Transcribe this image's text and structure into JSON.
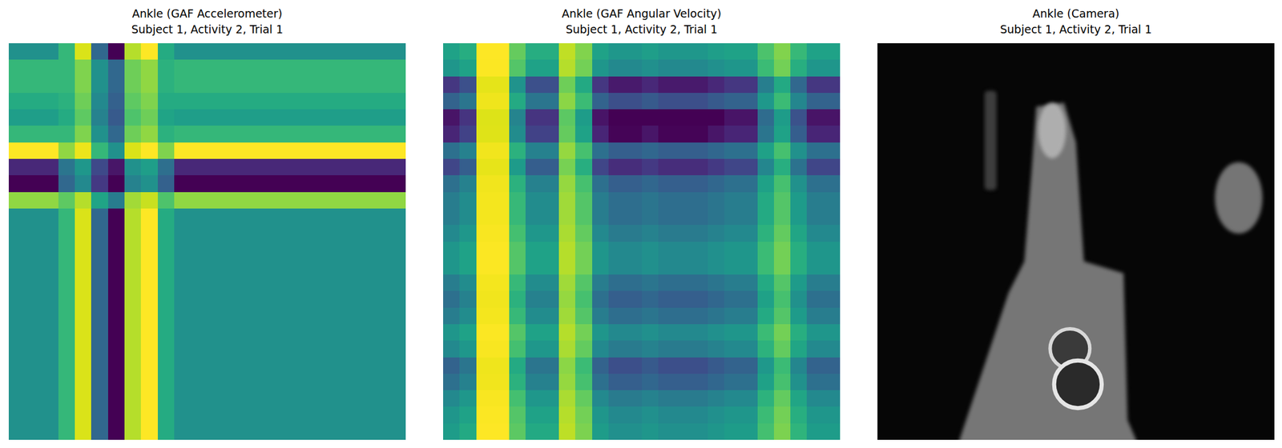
{
  "chart_data": [
    {
      "type": "heatmap",
      "title": [
        "Ankle (GAF Accelerometer)",
        "Subject 1, Activity 2, Trial 1"
      ],
      "tick_labels": false,
      "z": [
        [
          0,
          0,
          0,
          0.3,
          0.8,
          -0.3,
          -0.9,
          0.7,
          0.9,
          0.2,
          0,
          0,
          0,
          0,
          0,
          0,
          0,
          0,
          0,
          0,
          0,
          0,
          0,
          0
        ],
        [
          0.3,
          0.3,
          0.3,
          0.3,
          0.55,
          0,
          -0.3,
          0.5,
          0.6,
          0.25,
          0.3,
          0.3,
          0.3,
          0.3,
          0.3,
          0.3,
          0.3,
          0.3,
          0.3,
          0.3,
          0.3,
          0.3,
          0.3,
          0.3
        ],
        [
          0.3,
          0.3,
          0.3,
          0.3,
          0.55,
          0,
          -0.3,
          0.5,
          0.6,
          0.25,
          0.3,
          0.3,
          0.3,
          0.3,
          0.3,
          0.3,
          0.3,
          0.3,
          0.3,
          0.3,
          0.3,
          0.3,
          0.3,
          0.3
        ],
        [
          0.2,
          0.2,
          0.2,
          0.25,
          0.5,
          -0.05,
          -0.35,
          0.45,
          0.55,
          0.2,
          0.2,
          0.2,
          0.2,
          0.2,
          0.2,
          0.2,
          0.2,
          0.2,
          0.2,
          0.2,
          0.2,
          0.2,
          0.2,
          0.2
        ],
        [
          0.1,
          0.1,
          0.1,
          0.2,
          0.45,
          -0.1,
          -0.4,
          0.4,
          0.5,
          0.15,
          0.1,
          0.1,
          0.1,
          0.1,
          0.1,
          0.1,
          0.1,
          0.1,
          0.1,
          0.1,
          0.1,
          0.1,
          0.1,
          0.1
        ],
        [
          0.3,
          0.3,
          0.3,
          0.3,
          0.55,
          0,
          -0.3,
          0.5,
          0.6,
          0.25,
          0.3,
          0.3,
          0.3,
          0.3,
          0.3,
          0.3,
          0.3,
          0.3,
          0.3,
          0.3,
          0.3,
          0.3,
          0.3,
          0.3
        ],
        [
          0.9,
          0.9,
          0.9,
          0.6,
          0.85,
          0.3,
          0,
          0.8,
          0.9,
          0.55,
          0.9,
          0.9,
          0.9,
          0.9,
          0.9,
          0.9,
          0.9,
          0.9,
          0.9,
          0.9,
          0.9,
          0.9,
          0.9,
          0.9
        ],
        [
          -0.7,
          -0.7,
          -0.7,
          -0.2,
          0.05,
          -0.5,
          -0.8,
          0,
          0.1,
          -0.25,
          -0.7,
          -0.7,
          -0.7,
          -0.7,
          -0.7,
          -0.7,
          -0.7,
          -0.7,
          -0.7,
          -0.7,
          -0.7,
          -0.7,
          -0.7,
          -0.7
        ],
        [
          -0.9,
          -0.9,
          -0.9,
          -0.3,
          -0.05,
          -0.6,
          -0.9,
          -0.1,
          0,
          -0.35,
          -0.9,
          -0.9,
          -0.9,
          -0.9,
          -0.9,
          -0.9,
          -0.9,
          -0.9,
          -0.9,
          -0.9,
          -0.9,
          -0.9,
          -0.9,
          -0.9
        ],
        [
          0.6,
          0.6,
          0.6,
          0.45,
          0.7,
          0.15,
          -0.15,
          0.65,
          0.75,
          0.4,
          0.6,
          0.6,
          0.6,
          0.6,
          0.6,
          0.6,
          0.6,
          0.6,
          0.6,
          0.6,
          0.6,
          0.6,
          0.6,
          0.6
        ],
        [
          0,
          0,
          0,
          0.3,
          0.8,
          -0.3,
          -0.9,
          0.7,
          0.9,
          0.2,
          0,
          0,
          0,
          0,
          0,
          0,
          0,
          0,
          0,
          0,
          0,
          0,
          0,
          0
        ],
        [
          0,
          0,
          0,
          0.3,
          0.8,
          -0.3,
          -0.9,
          0.7,
          0.9,
          0.2,
          0,
          0,
          0,
          0,
          0,
          0,
          0,
          0,
          0,
          0,
          0,
          0,
          0,
          0
        ],
        [
          0,
          0,
          0,
          0.3,
          0.8,
          -0.3,
          -0.9,
          0.7,
          0.9,
          0.2,
          0,
          0,
          0,
          0,
          0,
          0,
          0,
          0,
          0,
          0,
          0,
          0,
          0,
          0
        ],
        [
          0,
          0,
          0,
          0.3,
          0.8,
          -0.3,
          -0.9,
          0.7,
          0.9,
          0.2,
          0,
          0,
          0,
          0,
          0,
          0,
          0,
          0,
          0,
          0,
          0,
          0,
          0,
          0
        ],
        [
          0,
          0,
          0,
          0.3,
          0.8,
          -0.3,
          -0.9,
          0.7,
          0.9,
          0.2,
          0,
          0,
          0,
          0,
          0,
          0,
          0,
          0,
          0,
          0,
          0,
          0,
          0,
          0
        ],
        [
          0,
          0,
          0,
          0.3,
          0.8,
          -0.3,
          -0.9,
          0.7,
          0.9,
          0.2,
          0,
          0,
          0,
          0,
          0,
          0,
          0,
          0,
          0,
          0,
          0,
          0,
          0,
          0
        ],
        [
          0,
          0,
          0,
          0.3,
          0.8,
          -0.3,
          -0.9,
          0.7,
          0.9,
          0.2,
          0,
          0,
          0,
          0,
          0,
          0,
          0,
          0,
          0,
          0,
          0,
          0,
          0,
          0
        ],
        [
          0,
          0,
          0,
          0.3,
          0.8,
          -0.3,
          -0.9,
          0.7,
          0.9,
          0.2,
          0,
          0,
          0,
          0,
          0,
          0,
          0,
          0,
          0,
          0,
          0,
          0,
          0,
          0
        ],
        [
          0,
          0,
          0,
          0.3,
          0.8,
          -0.3,
          -0.9,
          0.7,
          0.9,
          0.2,
          0,
          0,
          0,
          0,
          0,
          0,
          0,
          0,
          0,
          0,
          0,
          0,
          0,
          0
        ],
        [
          0,
          0,
          0,
          0.3,
          0.8,
          -0.3,
          -0.9,
          0.7,
          0.9,
          0.2,
          0,
          0,
          0,
          0,
          0,
          0,
          0,
          0,
          0,
          0,
          0,
          0,
          0,
          0
        ],
        [
          0,
          0,
          0,
          0.3,
          0.8,
          -0.3,
          -0.9,
          0.7,
          0.9,
          0.2,
          0,
          0,
          0,
          0,
          0,
          0,
          0,
          0,
          0,
          0,
          0,
          0,
          0,
          0
        ],
        [
          0,
          0,
          0,
          0.3,
          0.8,
          -0.3,
          -0.9,
          0.7,
          0.9,
          0.2,
          0,
          0,
          0,
          0,
          0,
          0,
          0,
          0,
          0,
          0,
          0,
          0,
          0,
          0
        ],
        [
          0,
          0,
          0,
          0.3,
          0.8,
          -0.3,
          -0.9,
          0.7,
          0.9,
          0.2,
          0,
          0,
          0,
          0,
          0,
          0,
          0,
          0,
          0,
          0,
          0,
          0,
          0,
          0
        ],
        [
          0,
          0,
          0,
          0.3,
          0.8,
          -0.3,
          -0.9,
          0.7,
          0.9,
          0.2,
          0,
          0,
          0,
          0,
          0,
          0,
          0,
          0,
          0,
          0,
          0,
          0,
          0,
          0
        ]
      ]
    },
    {
      "type": "heatmap",
      "title": [
        "Ankle (GAF Angular Velocity)",
        "Subject 1, Activity 2, Trial 1"
      ],
      "tick_labels": false,
      "z": [
        [
          0.1,
          0.19,
          0.91,
          0.91,
          0.46,
          0.19,
          0.19,
          0.73,
          0.55,
          0.1,
          0.01,
          0.01,
          0.06,
          0.01,
          0.01,
          0.01,
          0.06,
          0.1,
          0.1,
          0.37,
          0.55,
          0.28,
          0.1,
          0.1
        ],
        [
          0,
          0.1,
          0.9,
          0.9,
          0.4,
          0.1,
          0.1,
          0.7,
          0.5,
          0,
          -0.1,
          -0.1,
          -0.05,
          -0.1,
          -0.1,
          -0.1,
          -0.05,
          0,
          0,
          0.3,
          0.5,
          0.2,
          0,
          0
        ],
        [
          -0.7,
          -0.53,
          0.83,
          0.83,
          -0.02,
          -0.53,
          -0.53,
          0.49,
          0.15,
          -0.7,
          -0.87,
          -0.87,
          -0.79,
          -0.87,
          -0.87,
          -0.87,
          -0.79,
          -0.7,
          -0.7,
          -0.19,
          0.15,
          -0.36,
          -0.7,
          -0.7
        ],
        [
          -0.4,
          -0.26,
          0.86,
          0.86,
          0.16,
          -0.26,
          -0.26,
          0.58,
          0.3,
          -0.4,
          -0.54,
          -0.54,
          -0.47,
          -0.54,
          -0.54,
          -0.54,
          -0.47,
          -0.4,
          -0.4,
          0.02,
          0.3,
          -0.12,
          -0.4,
          -0.4
        ],
        [
          -0.9,
          -0.71,
          0.81,
          0.81,
          -0.14,
          -0.71,
          -0.71,
          0.43,
          0.05,
          -0.9,
          -1,
          -1,
          -1,
          -1,
          -1,
          -1,
          -1,
          -0.9,
          -0.9,
          -0.33,
          0.05,
          -0.52,
          -0.9,
          -0.9
        ],
        [
          -0.8,
          -0.62,
          0.82,
          0.82,
          -0.08,
          -0.62,
          -0.62,
          0.46,
          0.1,
          -0.8,
          -0.98,
          -0.98,
          -0.89,
          -0.98,
          -0.98,
          -0.98,
          -0.89,
          -0.8,
          -0.8,
          -0.26,
          0.1,
          -0.44,
          -0.8,
          -0.8
        ],
        [
          -0.3,
          -0.17,
          0.87,
          0.87,
          0.22,
          -0.17,
          -0.17,
          0.61,
          0.35,
          -0.3,
          -0.43,
          -0.43,
          -0.37,
          -0.43,
          -0.43,
          -0.43,
          -0.37,
          -0.3,
          -0.3,
          0.09,
          0.35,
          -0.04,
          -0.3,
          -0.3
        ],
        [
          -0.6,
          -0.44,
          0.84,
          0.84,
          0.04,
          -0.44,
          -0.44,
          0.52,
          0.2,
          -0.6,
          -0.76,
          -0.76,
          -0.68,
          -0.76,
          -0.76,
          -0.76,
          -0.68,
          -0.6,
          -0.6,
          -0.12,
          0.2,
          -0.28,
          -0.6,
          -0.6
        ],
        [
          -0.3,
          -0.17,
          0.87,
          0.87,
          0.22,
          -0.17,
          -0.17,
          0.61,
          0.35,
          -0.3,
          -0.43,
          -0.43,
          -0.37,
          -0.43,
          -0.43,
          -0.43,
          -0.37,
          -0.3,
          -0.3,
          0.09,
          0.35,
          -0.04,
          -0.3,
          -0.3
        ],
        [
          -0.2,
          -0.08,
          0.88,
          0.88,
          0.28,
          -0.08,
          -0.08,
          0.64,
          0.4,
          -0.2,
          -0.32,
          -0.32,
          -0.26,
          -0.32,
          -0.32,
          -0.32,
          -0.26,
          -0.2,
          -0.2,
          0.16,
          0.4,
          0.04,
          -0.2,
          -0.2
        ],
        [
          -0.2,
          -0.08,
          0.88,
          0.88,
          0.28,
          -0.08,
          -0.08,
          0.64,
          0.4,
          -0.2,
          -0.32,
          -0.32,
          -0.26,
          -0.32,
          -0.32,
          -0.32,
          -0.26,
          -0.2,
          -0.2,
          0.16,
          0.4,
          0.04,
          -0.2,
          -0.2
        ],
        [
          -0.1,
          0.01,
          0.89,
          0.89,
          0.34,
          0.01,
          0.01,
          0.67,
          0.45,
          -0.1,
          -0.21,
          -0.21,
          -0.16,
          -0.21,
          -0.21,
          -0.21,
          -0.16,
          -0.1,
          -0.1,
          0.23,
          0.45,
          0.12,
          -0.1,
          -0.1
        ],
        [
          0,
          0.1,
          0.9,
          0.9,
          0.4,
          0.1,
          0.1,
          0.7,
          0.5,
          0,
          -0.1,
          -0.1,
          -0.05,
          -0.1,
          -0.1,
          -0.1,
          -0.05,
          0,
          0,
          0.3,
          0.5,
          0.2,
          0,
          0
        ],
        [
          0,
          0.1,
          0.9,
          0.9,
          0.4,
          0.1,
          0.1,
          0.7,
          0.5,
          0,
          -0.1,
          -0.1,
          -0.05,
          -0.1,
          -0.1,
          -0.1,
          -0.05,
          0,
          0,
          0.3,
          0.5,
          0.2,
          0,
          0
        ],
        [
          -0.2,
          -0.08,
          0.88,
          0.88,
          0.28,
          -0.08,
          -0.08,
          0.64,
          0.4,
          -0.2,
          -0.32,
          -0.32,
          -0.26,
          -0.32,
          -0.32,
          -0.32,
          -0.26,
          -0.2,
          -0.2,
          0.16,
          0.4,
          0.04,
          -0.2,
          -0.2
        ],
        [
          -0.3,
          -0.17,
          0.87,
          0.87,
          0.22,
          -0.17,
          -0.17,
          0.61,
          0.35,
          -0.3,
          -0.43,
          -0.43,
          -0.37,
          -0.43,
          -0.43,
          -0.43,
          -0.37,
          -0.3,
          -0.3,
          0.09,
          0.35,
          -0.04,
          -0.3,
          -0.3
        ],
        [
          -0.2,
          -0.08,
          0.88,
          0.88,
          0.28,
          -0.08,
          -0.08,
          0.64,
          0.4,
          -0.2,
          -0.32,
          -0.32,
          -0.26,
          -0.32,
          -0.32,
          -0.32,
          -0.26,
          -0.2,
          -0.2,
          0.16,
          0.4,
          0.04,
          -0.2,
          -0.2
        ],
        [
          0,
          0.1,
          0.9,
          0.9,
          0.4,
          0.1,
          0.1,
          0.7,
          0.5,
          0,
          -0.1,
          -0.1,
          -0.05,
          -0.1,
          -0.1,
          -0.1,
          -0.05,
          0,
          0,
          0.3,
          0.5,
          0.2,
          0,
          0
        ],
        [
          -0.1,
          0.01,
          0.89,
          0.89,
          0.34,
          0.01,
          0.01,
          0.67,
          0.45,
          -0.1,
          -0.21,
          -0.21,
          -0.16,
          -0.21,
          -0.21,
          -0.21,
          -0.16,
          -0.1,
          -0.1,
          0.23,
          0.45,
          0.12,
          -0.1,
          -0.1
        ],
        [
          -0.4,
          -0.26,
          0.86,
          0.86,
          0.16,
          -0.26,
          -0.26,
          0.58,
          0.3,
          -0.4,
          -0.54,
          -0.54,
          -0.47,
          -0.54,
          -0.54,
          -0.54,
          -0.47,
          -0.4,
          -0.4,
          0.02,
          0.3,
          -0.12,
          -0.4,
          -0.4
        ],
        [
          -0.3,
          -0.17,
          0.87,
          0.87,
          0.22,
          -0.17,
          -0.17,
          0.61,
          0.35,
          -0.3,
          -0.43,
          -0.43,
          -0.37,
          -0.43,
          -0.43,
          -0.43,
          -0.37,
          -0.3,
          -0.3,
          0.09,
          0.35,
          -0.04,
          -0.3,
          -0.3
        ],
        [
          -0.1,
          0.01,
          0.89,
          0.89,
          0.34,
          0.01,
          0.01,
          0.67,
          0.45,
          -0.1,
          -0.21,
          -0.21,
          -0.16,
          -0.21,
          -0.21,
          -0.21,
          -0.16,
          -0.1,
          -0.1,
          0.23,
          0.45,
          0.12,
          -0.1,
          -0.1
        ],
        [
          0,
          0.1,
          0.9,
          0.9,
          0.4,
          0.1,
          0.1,
          0.7,
          0.5,
          0,
          -0.1,
          -0.1,
          -0.05,
          -0.1,
          -0.1,
          -0.1,
          -0.05,
          0,
          0,
          0.3,
          0.5,
          0.2,
          0,
          0
        ],
        [
          0.05,
          0.15,
          0.91,
          0.91,
          0.43,
          0.15,
          0.15,
          0.72,
          0.53,
          0.05,
          -0.05,
          -0.05,
          0,
          -0.05,
          -0.05,
          -0.05,
          0,
          0.05,
          0.05,
          0.34,
          0.53,
          0.24,
          0.05,
          0.05
        ]
      ]
    },
    {
      "type": "image",
      "title": [
        "Ankle (Camera)",
        "Subject 1, Activity 2, Trial 1"
      ],
      "tick_labels": false
    }
  ]
}
